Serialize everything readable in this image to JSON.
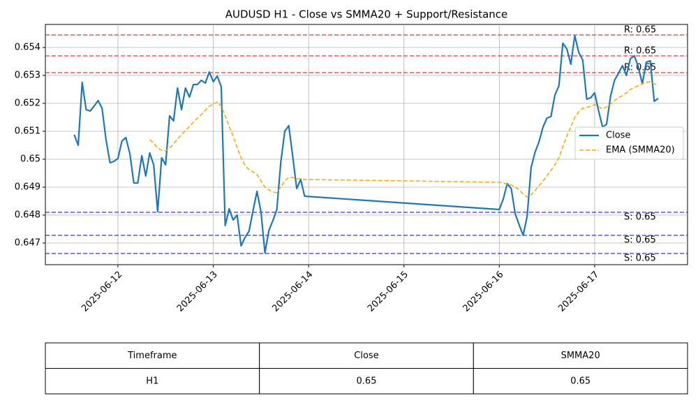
{
  "chart_data": {
    "type": "line",
    "title": "AUDUSD H1 - Close vs SMMA20 + Support/Resistance",
    "x": [
      "2025-06-11 13:00",
      "2025-06-11 14:00",
      "2025-06-11 15:00",
      "2025-06-11 16:00",
      "2025-06-11 17:00",
      "2025-06-11 18:00",
      "2025-06-11 19:00",
      "2025-06-11 20:00",
      "2025-06-11 21:00",
      "2025-06-11 22:00",
      "2025-06-11 23:00",
      "2025-06-12 00:00",
      "2025-06-12 01:00",
      "2025-06-12 02:00",
      "2025-06-12 03:00",
      "2025-06-12 04:00",
      "2025-06-12 05:00",
      "2025-06-12 06:00",
      "2025-06-12 07:00",
      "2025-06-12 08:00",
      "2025-06-12 09:00",
      "2025-06-12 10:00",
      "2025-06-12 11:00",
      "2025-06-12 12:00",
      "2025-06-12 13:00",
      "2025-06-12 14:00",
      "2025-06-12 15:00",
      "2025-06-12 16:00",
      "2025-06-12 17:00",
      "2025-06-12 18:00",
      "2025-06-12 19:00",
      "2025-06-12 20:00",
      "2025-06-12 21:00",
      "2025-06-12 22:00",
      "2025-06-12 23:00",
      "2025-06-13 00:00",
      "2025-06-13 01:00",
      "2025-06-13 02:00",
      "2025-06-13 03:00",
      "2025-06-13 04:00",
      "2025-06-13 05:00",
      "2025-06-13 06:00",
      "2025-06-13 07:00",
      "2025-06-13 08:00",
      "2025-06-13 09:00",
      "2025-06-13 10:00",
      "2025-06-13 11:00",
      "2025-06-13 12:00",
      "2025-06-13 13:00",
      "2025-06-13 14:00",
      "2025-06-13 15:00",
      "2025-06-13 16:00",
      "2025-06-13 17:00",
      "2025-06-13 18:00",
      "2025-06-13 19:00",
      "2025-06-13 20:00",
      "2025-06-13 21:00",
      "2025-06-13 22:00",
      "2025-06-13 23:00",
      "2025-06-16 00:00",
      "2025-06-16 01:00",
      "2025-06-16 02:00",
      "2025-06-16 03:00",
      "2025-06-16 04:00",
      "2025-06-16 05:00",
      "2025-06-16 06:00",
      "2025-06-16 07:00",
      "2025-06-16 08:00",
      "2025-06-16 09:00",
      "2025-06-16 10:00",
      "2025-06-16 11:00",
      "2025-06-16 12:00",
      "2025-06-16 13:00",
      "2025-06-16 14:00",
      "2025-06-16 15:00",
      "2025-06-16 16:00",
      "2025-06-16 17:00",
      "2025-06-16 18:00",
      "2025-06-16 19:00",
      "2025-06-16 20:00",
      "2025-06-16 21:00",
      "2025-06-16 22:00",
      "2025-06-16 23:00",
      "2025-06-17 00:00",
      "2025-06-17 01:00",
      "2025-06-17 02:00",
      "2025-06-17 03:00",
      "2025-06-17 04:00",
      "2025-06-17 05:00",
      "2025-06-17 06:00",
      "2025-06-17 07:00",
      "2025-06-17 08:00",
      "2025-06-17 09:00",
      "2025-06-17 10:00",
      "2025-06-17 11:00",
      "2025-06-17 12:00",
      "2025-06-17 13:00",
      "2025-06-17 14:00",
      "2025-06-17 15:00",
      "2025-06-17 16:00"
    ],
    "series": [
      {
        "name": "Close",
        "color": "#1f77b4",
        "dash": false,
        "values": [
          0.650875,
          0.6505,
          0.65275,
          0.651775,
          0.651725,
          0.6519,
          0.6521,
          0.651825,
          0.6507,
          0.649875,
          0.649925,
          0.650025,
          0.65065,
          0.650775,
          0.6502,
          0.64915,
          0.64915,
          0.650125,
          0.6494,
          0.650225,
          0.6498,
          0.648125,
          0.65005,
          0.6498,
          0.65155,
          0.651375,
          0.65255,
          0.651775,
          0.65255,
          0.652225,
          0.652675,
          0.652675,
          0.652825,
          0.652725,
          0.653125,
          0.652775,
          0.652975,
          0.6526,
          0.647625,
          0.648225,
          0.647825,
          0.648,
          0.6469,
          0.6472,
          0.647425,
          0.64815,
          0.64885,
          0.648125,
          0.64665,
          0.64745,
          0.6478,
          0.6482,
          0.6499,
          0.651,
          0.6512,
          0.6501,
          0.64895,
          0.649275,
          0.648675,
          0.6482,
          0.648575,
          0.649125,
          0.64895,
          0.64805,
          0.64765,
          0.647275,
          0.64795,
          0.6497,
          0.65025,
          0.650625,
          0.65115,
          0.651475,
          0.651525,
          0.6523,
          0.652625,
          0.65415,
          0.65395,
          0.6534,
          0.654425,
          0.653825,
          0.65355,
          0.65215,
          0.6522,
          0.652375,
          0.651725,
          0.65115,
          0.65125,
          0.65225,
          0.652825,
          0.653075,
          0.65335,
          0.653,
          0.6536,
          0.6537,
          0.6533,
          0.6527,
          0.653475,
          0.653525,
          0.652075,
          0.652175
        ]
      },
      {
        "name": "EMA (SMMA20)",
        "color": "#ffa500",
        "dash": true,
        "values": [
          null,
          null,
          null,
          null,
          null,
          null,
          null,
          null,
          null,
          null,
          null,
          null,
          null,
          null,
          null,
          null,
          null,
          null,
          null,
          0.6507,
          0.650575,
          0.6504,
          0.650325,
          0.6503,
          0.6504,
          0.65055,
          0.650725,
          0.650875,
          0.651025,
          0.651175,
          0.651325,
          0.651475,
          0.6516,
          0.65175,
          0.6519,
          0.651975,
          0.65205,
          0.6519,
          0.65155,
          0.651175,
          0.650825,
          0.650425,
          0.65005,
          0.649775,
          0.649625,
          0.64955,
          0.64945,
          0.649225,
          0.649,
          0.6489,
          0.648825,
          0.6488,
          0.649,
          0.649225,
          0.64935,
          0.64935,
          0.6493,
          0.6493,
          0.649275,
          0.649175,
          0.64915,
          0.6491,
          0.649075,
          0.649,
          0.6489,
          0.64875,
          0.64865,
          0.648725,
          0.648875,
          0.64905,
          0.649225,
          0.6494,
          0.6496,
          0.6498,
          0.65005,
          0.65045,
          0.650825,
          0.65115,
          0.6515,
          0.6517,
          0.651825,
          0.65185,
          0.6519,
          0.65195,
          0.651875,
          0.6518,
          0.651875,
          0.651975,
          0.6521,
          0.6522,
          0.652275,
          0.652375,
          0.6525,
          0.652575,
          0.652625,
          0.6527,
          0.65275,
          0.652775,
          0.6527,
          0.65265
        ]
      }
    ],
    "resistance": {
      "color": "#e8302a",
      "values": [
        0.65445,
        0.6537,
        0.6531
      ],
      "value_labels": [
        "R: 0.65",
        "R: 0.65",
        "R: 0.65"
      ]
    },
    "support": {
      "color": "#2a2ae8",
      "values": [
        0.6481,
        0.647275,
        0.646625
      ],
      "value_labels": [
        "S: 0.65",
        "S: 0.65",
        "S: 0.65"
      ]
    },
    "xlim": [
      "2025-06-11 05:44",
      "2025-06-17 23:23"
    ],
    "xticks": [
      "2025-06-12",
      "2025-06-13",
      "2025-06-14",
      "2025-06-15",
      "2025-06-16",
      "2025-06-17"
    ],
    "ylim": [
      0.646225,
      0.654825
    ],
    "yticks": [
      0.647,
      0.648,
      0.649,
      0.65,
      0.651,
      0.652,
      0.653,
      0.654
    ],
    "grid": true,
    "legend": "center right"
  },
  "table": {
    "header": [
      "Timeframe",
      "Close",
      "SMMA20"
    ],
    "rows": [
      [
        "H1",
        0.65,
        0.65
      ]
    ]
  }
}
